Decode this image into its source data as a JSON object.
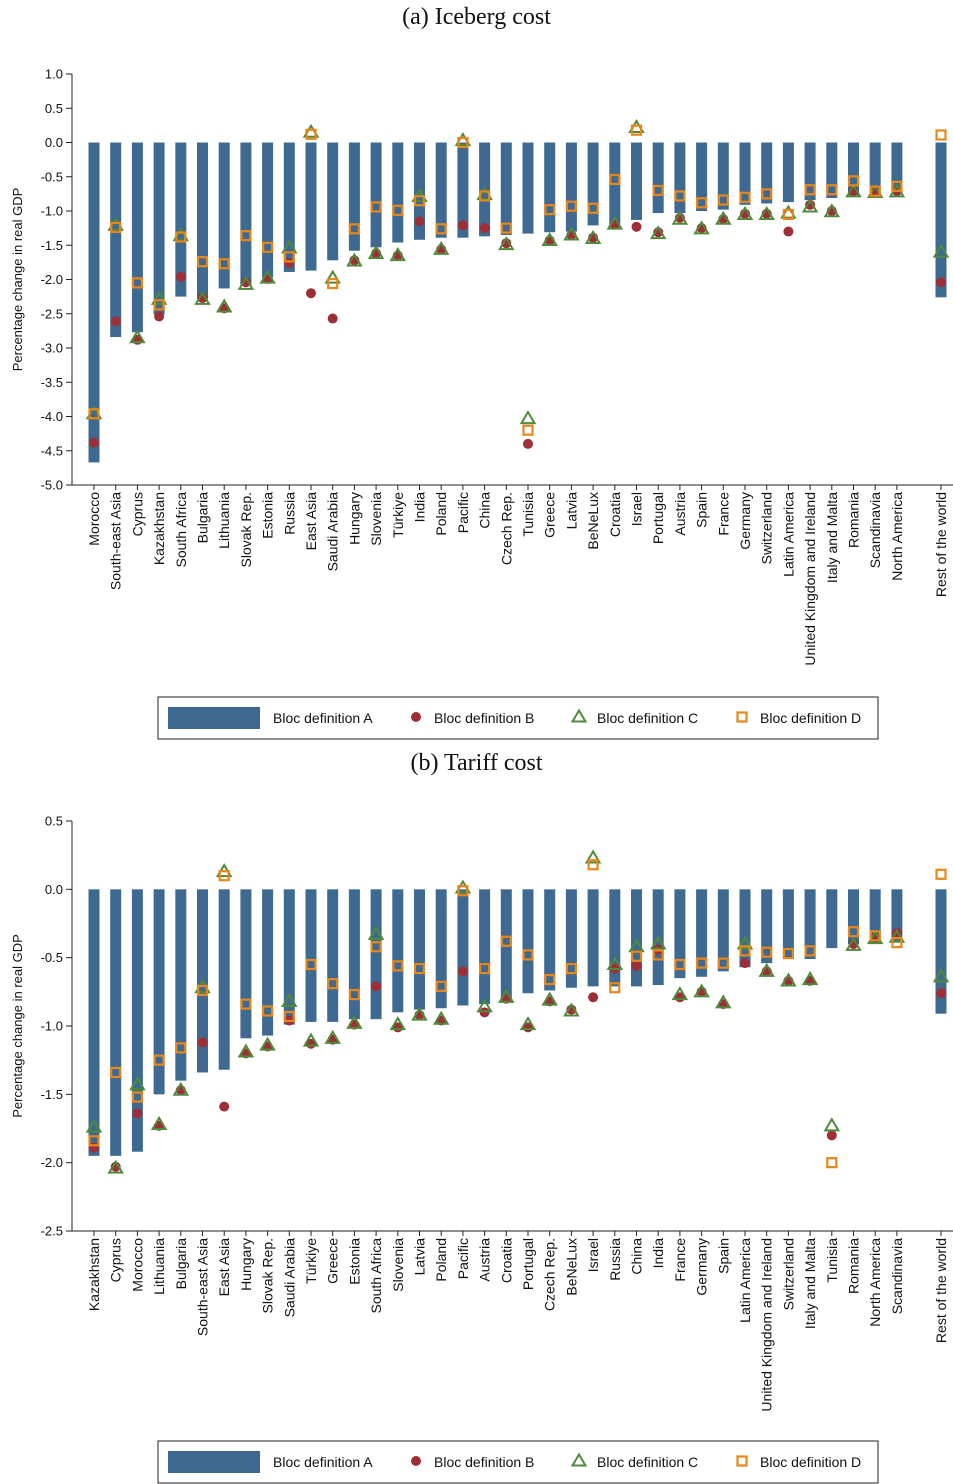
{
  "chart_data": [
    {
      "type": "bar",
      "title": "(a) Iceberg cost",
      "ylabel": "Percentage change in real GDP",
      "ylim": [
        -5.0,
        1.0
      ],
      "yticks": [
        "1.0",
        "0.5",
        "0.0",
        "-0.5",
        "-1.0",
        "-1.5",
        "-2.0",
        "-2.5",
        "-3.0",
        "-3.5",
        "-4.0",
        "-4.5",
        "-5.0"
      ],
      "categories": [
        "Morocco",
        "South-east Asia",
        "Cyprus",
        "Kazakhstan",
        "South Africa",
        "Bulgaria",
        "Lithuania",
        "Slovak Rep.",
        "Estonia",
        "Russia",
        "East Asia",
        "Saudi Arabia",
        "Hungary",
        "Slovenia",
        "Türkiye",
        "India",
        "Poland",
        "Pacific",
        "China",
        "Czech Rep.",
        "Tunisia",
        "Greece",
        "Latvia",
        "BeNeLux",
        "Croatia",
        "Israel",
        "Portugal",
        "Austria",
        "Spain",
        "France",
        "Germany",
        "Switzerland",
        "Latin America",
        "United Kingdom and Ireland",
        "Italy and Malta",
        "Romania",
        "Scandinavia",
        "North America",
        "Rest of the world"
      ],
      "series": [
        {
          "name": "Bloc definition A",
          "marker": "bar",
          "color": "#3e6a92",
          "values": [
            -4.67,
            -2.84,
            -2.77,
            -2.51,
            -2.25,
            -2.29,
            -2.13,
            -2.08,
            -1.97,
            -1.89,
            -1.87,
            -1.72,
            -1.58,
            -1.53,
            -1.46,
            -1.42,
            -1.39,
            -1.39,
            -1.37,
            -1.35,
            -1.33,
            -1.31,
            -1.3,
            -1.21,
            -1.2,
            -1.13,
            -1.03,
            -1.03,
            -1.0,
            -0.98,
            -0.91,
            -0.89,
            -0.87,
            -0.84,
            -0.81,
            -0.77,
            -0.77,
            -0.7,
            -2.26
          ]
        },
        {
          "name": "Bloc definition B",
          "marker": "circle",
          "color": "#9e2f37",
          "values": [
            -4.38,
            -2.61,
            -2.88,
            -2.54,
            -1.96,
            -2.27,
            -2.42,
            -2.04,
            -1.99,
            -1.76,
            -2.2,
            -2.57,
            -1.72,
            -1.62,
            -1.65,
            -1.15,
            -1.56,
            -1.21,
            -1.25,
            -1.47,
            -4.4,
            -1.43,
            -1.35,
            -1.39,
            -1.2,
            -1.23,
            -1.31,
            -1.1,
            -1.25,
            -1.12,
            -1.04,
            -1.04,
            -1.3,
            -0.91,
            -1.0,
            -0.71,
            -0.71,
            -0.71,
            -2.04
          ]
        },
        {
          "name": "Bloc definition C",
          "marker": "triangle",
          "color": "#4f8a3a",
          "values": [
            -3.96,
            -1.21,
            -2.85,
            -2.29,
            -1.36,
            -2.29,
            -2.4,
            -2.07,
            -1.98,
            -1.54,
            0.15,
            -1.98,
            -1.73,
            -1.62,
            -1.65,
            -0.79,
            -1.56,
            0.03,
            -0.76,
            -1.49,
            -4.03,
            -1.43,
            -1.35,
            -1.4,
            -1.19,
            0.22,
            -1.33,
            -1.12,
            -1.26,
            -1.12,
            -1.05,
            -1.05,
            -1.03,
            -0.94,
            -1.01,
            -0.72,
            -0.73,
            -0.72,
            -1.6
          ]
        },
        {
          "name": "Bloc definition D",
          "marker": "square",
          "color": "#e8861a",
          "values": [
            -3.96,
            -1.24,
            -2.05,
            -2.37,
            -1.38,
            -1.74,
            -1.77,
            -1.36,
            -1.53,
            -1.67,
            0.12,
            -2.06,
            -1.26,
            -0.94,
            -0.99,
            -0.85,
            -1.26,
            0.0,
            -0.78,
            -1.25,
            -4.2,
            -0.98,
            -0.93,
            -0.96,
            -0.54,
            0.18,
            -0.7,
            -0.78,
            -0.88,
            -0.84,
            -0.8,
            -0.75,
            -1.05,
            -0.69,
            -0.69,
            -0.56,
            -0.71,
            -0.64,
            0.11
          ]
        }
      ],
      "legend": "bottom"
    },
    {
      "type": "bar",
      "title": "(b) Tariff cost",
      "ylabel": "Percentage change in real GDP",
      "ylim": [
        -2.5,
        0.5
      ],
      "yticks": [
        "0.5",
        "0.0",
        "-0.5",
        "-1.0",
        "-1.5",
        "-2.0",
        "-2.5"
      ],
      "categories": [
        "Kazakhstan",
        "Cyprus",
        "Morocco",
        "Lithuania",
        "Bulgaria",
        "South-east Asia",
        "East Asia",
        "Hungary",
        "Slovak Rep.",
        "Saudi Arabia",
        "Türkiye",
        "Greece",
        "Estonia",
        "South Africa",
        "Slovenia",
        "Latvia",
        "Poland",
        "Pacific",
        "Austria",
        "Croatia",
        "Portugal",
        "Czech Rep.",
        "BeNeLux",
        "Israel",
        "Russia",
        "China",
        "India",
        "France",
        "Germany",
        "Spain",
        "Latin America",
        "United Kingdom and Ireland",
        "Switzerland",
        "Italy and Malta",
        "Tunisia",
        "Romania",
        "North America",
        "Scandinavia",
        "Rest of the world"
      ],
      "series": [
        {
          "name": "Bloc definition A",
          "marker": "bar",
          "color": "#3e6a92",
          "values": [
            -1.95,
            -1.95,
            -1.92,
            -1.5,
            -1.4,
            -1.34,
            -1.32,
            -1.09,
            -1.07,
            -0.99,
            -0.97,
            -0.97,
            -0.95,
            -0.95,
            -0.9,
            -0.88,
            -0.87,
            -0.85,
            -0.84,
            -0.81,
            -0.76,
            -0.74,
            -0.72,
            -0.71,
            -0.71,
            -0.71,
            -0.7,
            -0.65,
            -0.64,
            -0.6,
            -0.57,
            -0.54,
            -0.51,
            -0.51,
            -0.43,
            -0.4,
            -0.4,
            -0.38,
            -0.91
          ]
        },
        {
          "name": "Bloc definition B",
          "marker": "circle",
          "color": "#9e2f37",
          "values": [
            -1.89,
            -2.03,
            -1.64,
            -1.73,
            -1.47,
            -1.12,
            -1.59,
            -1.2,
            -1.15,
            -0.96,
            -1.13,
            -1.1,
            -0.99,
            -0.71,
            -1.01,
            -0.92,
            -0.96,
            -0.6,
            -0.9,
            -0.8,
            -1.01,
            -0.82,
            -0.88,
            -0.79,
            -0.58,
            -0.56,
            -0.44,
            -0.79,
            -0.75,
            -0.84,
            -0.54,
            -0.6,
            -0.67,
            -0.67,
            -1.8,
            -0.4,
            -0.35,
            -0.32,
            -0.76
          ]
        },
        {
          "name": "Bloc definition C",
          "marker": "triangle",
          "color": "#4f8a3a",
          "values": [
            -1.74,
            -2.04,
            -1.43,
            -1.72,
            -1.47,
            -0.72,
            0.13,
            -1.19,
            -1.14,
            -0.82,
            -1.11,
            -1.09,
            -0.98,
            -0.33,
            -0.99,
            -0.92,
            -0.95,
            0.01,
            -0.86,
            -0.79,
            -0.99,
            -0.81,
            -0.89,
            0.23,
            -0.55,
            -0.42,
            -0.4,
            -0.77,
            -0.75,
            -0.83,
            -0.4,
            -0.6,
            -0.67,
            -0.66,
            -1.73,
            -0.41,
            -0.36,
            -0.35,
            -0.64
          ]
        },
        {
          "name": "Bloc definition D",
          "marker": "square",
          "color": "#e8861a",
          "values": [
            -1.84,
            -1.34,
            -1.52,
            -1.25,
            -1.16,
            -0.74,
            0.1,
            -0.84,
            -0.89,
            -0.93,
            -0.55,
            -0.69,
            -0.77,
            -0.42,
            -0.56,
            -0.58,
            -0.71,
            -0.01,
            -0.58,
            -0.38,
            -0.48,
            -0.66,
            -0.58,
            0.18,
            -0.72,
            -0.49,
            -0.48,
            -0.55,
            -0.54,
            -0.54,
            -0.45,
            -0.46,
            -0.47,
            -0.45,
            -2.0,
            -0.31,
            -0.34,
            -0.39,
            0.11
          ]
        }
      ],
      "legend": "bottom"
    }
  ]
}
